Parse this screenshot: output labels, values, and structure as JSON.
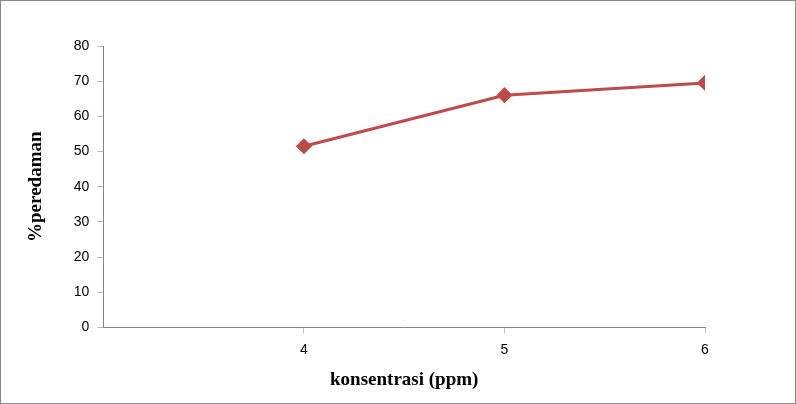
{
  "chart_data": {
    "type": "line",
    "x": [
      4,
      5,
      6
    ],
    "values": [
      51.5,
      66,
      69.5
    ],
    "color": "#be4b48",
    "marker": "diamond",
    "x_label": "konsentrasi (ppm)",
    "y_label": "%peredaman",
    "xlim": [
      3,
      6
    ],
    "xticks": [
      4,
      5,
      6
    ],
    "ylim": [
      0,
      80
    ],
    "yticks": [
      0,
      10,
      20,
      30,
      40,
      50,
      60,
      70,
      80
    ],
    "grid": false
  }
}
